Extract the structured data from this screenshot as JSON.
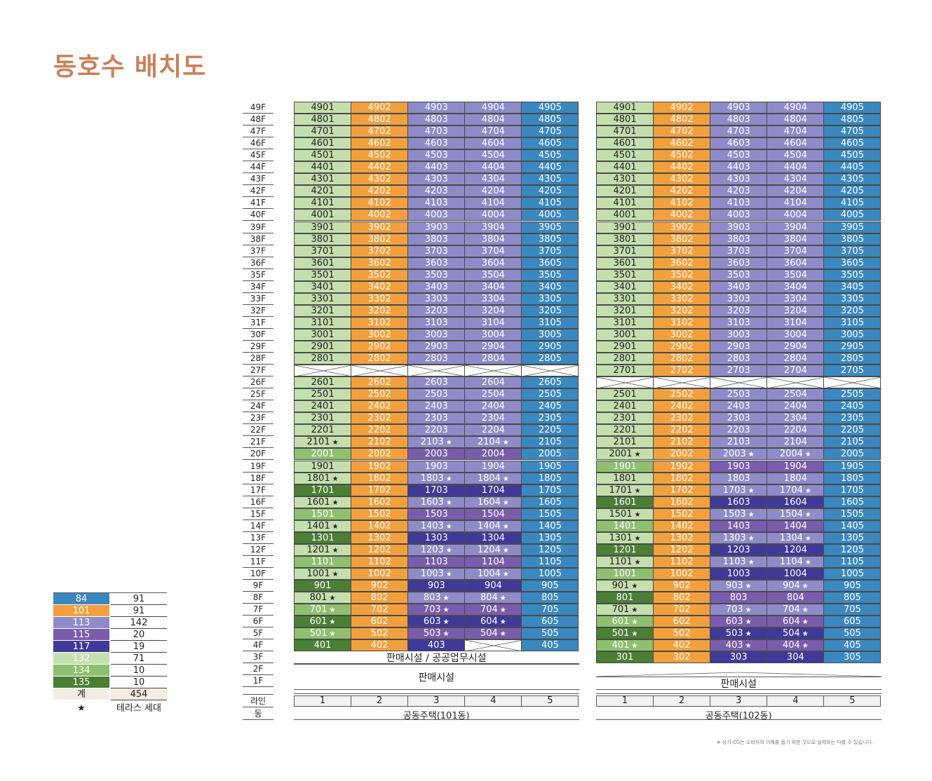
{
  "title": "동호수 배치도",
  "colors": {
    "84": "#3a88bf",
    "101": "#f2a03d",
    "113": "#8e8bc8",
    "115": "#7a5cac",
    "117": "#3f3a97",
    "132": "#c4dfad",
    "134": "#8ec06f",
    "135": "#4b7f35"
  },
  "legend": {
    "rows": [
      {
        "type": "84",
        "count": "91"
      },
      {
        "type": "101",
        "count": "91"
      },
      {
        "type": "113",
        "count": "142"
      },
      {
        "type": "115",
        "count": "20"
      },
      {
        "type": "117",
        "count": "19"
      },
      {
        "type": "132",
        "count": "71"
      },
      {
        "type": "134",
        "count": "10"
      },
      {
        "type": "135",
        "count": "10"
      }
    ],
    "total_label": "계",
    "total_value": "454",
    "star_symbol": "★",
    "star_label": "테라스 세대"
  },
  "floors": [
    "49F",
    "48F",
    "47F",
    "46F",
    "45F",
    "44F",
    "43F",
    "42F",
    "41F",
    "40F",
    "39F",
    "38F",
    "37F",
    "36F",
    "35F",
    "34F",
    "33F",
    "32F",
    "31F",
    "30F",
    "29F",
    "28F",
    "27F",
    "26F",
    "25F",
    "24F",
    "23F",
    "22F",
    "21F",
    "20F",
    "19F",
    "18F",
    "17F",
    "16F",
    "15F",
    "14F",
    "13F",
    "12F",
    "11F",
    "10F",
    "9F",
    "8F",
    "7F",
    "6F",
    "5F",
    "4F",
    "3F",
    "2F",
    "1F"
  ],
  "line_label": "라인",
  "building_label": "동",
  "lines": [
    "1",
    "2",
    "3",
    "4",
    "5"
  ],
  "buildings": [
    {
      "name": "공동주택(101동)",
      "commercial_upper": "판매시설 / 공공업무시설",
      "commercial_lower": "판매시설",
      "void_floor": "27F",
      "units": {
        "49F": [
          "4901:132",
          "4902:101",
          "4903:113",
          "4904:113",
          "4905:84"
        ],
        "48F": [
          "4801:132",
          "4802:101",
          "4803:113",
          "4804:113",
          "4805:84"
        ],
        "47F": [
          "4701:132",
          "4702:101",
          "4703:113",
          "4704:113",
          "4705:84"
        ],
        "46F": [
          "4601:132",
          "4602:101",
          "4603:113",
          "4604:113",
          "4605:84"
        ],
        "45F": [
          "4501:132",
          "4502:101",
          "4503:113",
          "4504:113",
          "4505:84"
        ],
        "44F": [
          "4401:132",
          "4402:101",
          "4403:113",
          "4404:113",
          "4405:84"
        ],
        "43F": [
          "4301:132",
          "4302:101",
          "4303:113",
          "4304:113",
          "4305:84"
        ],
        "42F": [
          "4201:132",
          "4202:101",
          "4203:113",
          "4204:113",
          "4205:84"
        ],
        "41F": [
          "4101:132",
          "4102:101",
          "4103:113",
          "4104:113",
          "4105:84"
        ],
        "40F": [
          "4001:132",
          "4002:101",
          "4003:113",
          "4004:113",
          "4005:84"
        ],
        "39F": [
          "3901:132",
          "3902:101",
          "3903:113",
          "3904:113",
          "3905:84"
        ],
        "38F": [
          "3801:132",
          "3802:101",
          "3803:113",
          "3804:113",
          "3805:84"
        ],
        "37F": [
          "3701:132",
          "3702:101",
          "3703:113",
          "3704:113",
          "3705:84"
        ],
        "36F": [
          "3601:132",
          "3602:101",
          "3603:113",
          "3604:113",
          "3605:84"
        ],
        "35F": [
          "3501:132",
          "3502:101",
          "3503:113",
          "3504:113",
          "3505:84"
        ],
        "34F": [
          "3401:132",
          "3402:101",
          "3403:113",
          "3404:113",
          "3405:84"
        ],
        "33F": [
          "3301:132",
          "3302:101",
          "3303:113",
          "3304:113",
          "3305:84"
        ],
        "32F": [
          "3201:132",
          "3202:101",
          "3203:113",
          "3204:113",
          "3205:84"
        ],
        "31F": [
          "3101:132",
          "3102:101",
          "3103:113",
          "3104:113",
          "3105:84"
        ],
        "30F": [
          "3001:132",
          "3002:101",
          "3003:113",
          "3004:113",
          "3005:84"
        ],
        "29F": [
          "2901:132",
          "2902:101",
          "2903:113",
          "2904:113",
          "2905:84"
        ],
        "28F": [
          "2801:132",
          "2802:101",
          "2803:113",
          "2804:113",
          "2805:84"
        ],
        "26F": [
          "2601:132",
          "2602:101",
          "2603:113",
          "2604:113",
          "2605:84"
        ],
        "25F": [
          "2501:132",
          "2502:101",
          "2503:113",
          "2504:113",
          "2505:84"
        ],
        "24F": [
          "2401:132",
          "2402:101",
          "2403:113",
          "2404:113",
          "2405:84"
        ],
        "23F": [
          "2301:132",
          "2302:101",
          "2303:113",
          "2304:113",
          "2305:84"
        ],
        "22F": [
          "2201:132",
          "2202:101",
          "2203:113",
          "2204:113",
          "2205:84"
        ],
        "21F": [
          "2101:132:s",
          "2102:101",
          "2103:113:s",
          "2104:113:s",
          "2105:84"
        ],
        "20F": [
          "2001:134",
          "2002:101",
          "2003:115",
          "2004:115",
          "2005:84"
        ],
        "19F": [
          "1901:132",
          "1902:101",
          "1903:113",
          "1904:113",
          "1905:84"
        ],
        "18F": [
          "1801:132:s",
          "1802:101",
          "1803:113:s",
          "1804:113:s",
          "1805:84"
        ],
        "17F": [
          "1701:135",
          "1702:101",
          "1703:117",
          "1704:117",
          "1705:84"
        ],
        "16F": [
          "1601:132:s",
          "1602:101",
          "1603:113:s",
          "1604:113:s",
          "1605:84"
        ],
        "15F": [
          "1501:134",
          "1502:101",
          "1503:115",
          "1504:115",
          "1505:84"
        ],
        "14F": [
          "1401:132:s",
          "1402:101",
          "1403:113:s",
          "1404:113:s",
          "1405:84"
        ],
        "13F": [
          "1301:135",
          "1302:101",
          "1303:117",
          "1304:117",
          "1305:84"
        ],
        "12F": [
          "1201:132:s",
          "1202:101",
          "1203:113:s",
          "1204:113:s",
          "1205:84"
        ],
        "11F": [
          "1101:134",
          "1102:101",
          "1103:115",
          "1104:115",
          "1105:84"
        ],
        "10F": [
          "1001:132:s",
          "1002:101",
          "1003:113:s",
          "1004:113:s",
          "1005:84"
        ],
        "9F": [
          "901:135",
          "902:101",
          "903:117",
          "904:117",
          "905:84"
        ],
        "8F": [
          "801:132:s",
          "802:101",
          "803:113:s",
          "804:113:s",
          "805:84"
        ],
        "7F": [
          "701:134:s",
          "702:101",
          "703:115:s",
          "704:115:s",
          "705:84"
        ],
        "6F": [
          "601:135:s",
          "602:101",
          "603:117:s",
          "604:117:s",
          "605:84"
        ],
        "5F": [
          "501:134:s",
          "502:101",
          "503:115:s",
          "504:115:s",
          "505:84"
        ],
        "4F": [
          "401:135",
          "402:101",
          "403:117",
          "X",
          "405:84"
        ]
      }
    },
    {
      "name": "공동주택(102동)",
      "commercial_lower": "판매시설",
      "void_floor": "26F",
      "units": {
        "49F": [
          "4901:132",
          "4902:101",
          "4903:113",
          "4904:113",
          "4905:84"
        ],
        "48F": [
          "4801:132",
          "4802:101",
          "4803:113",
          "4804:113",
          "4805:84"
        ],
        "47F": [
          "4701:132",
          "4702:101",
          "4703:113",
          "4704:113",
          "4705:84"
        ],
        "46F": [
          "4601:132",
          "4602:101",
          "4603:113",
          "4604:113",
          "4605:84"
        ],
        "45F": [
          "4501:132",
          "4502:101",
          "4503:113",
          "4504:113",
          "4505:84"
        ],
        "44F": [
          "4401:132",
          "4402:101",
          "4403:113",
          "4404:113",
          "4405:84"
        ],
        "43F": [
          "4301:132",
          "4302:101",
          "4303:113",
          "4304:113",
          "4305:84"
        ],
        "42F": [
          "4201:132",
          "4202:101",
          "4203:113",
          "4204:113",
          "4205:84"
        ],
        "41F": [
          "4101:132",
          "4102:101",
          "4103:113",
          "4104:113",
          "4105:84"
        ],
        "40F": [
          "4001:132",
          "4002:101",
          "4003:113",
          "4004:113",
          "4005:84"
        ],
        "39F": [
          "3901:132",
          "3902:101",
          "3903:113",
          "3904:113",
          "3905:84"
        ],
        "38F": [
          "3801:132",
          "3802:101",
          "3803:113",
          "3804:113",
          "3805:84"
        ],
        "37F": [
          "3701:132",
          "3702:101",
          "3703:113",
          "3704:113",
          "3705:84"
        ],
        "36F": [
          "3601:132",
          "3602:101",
          "3603:113",
          "3604:113",
          "3605:84"
        ],
        "35F": [
          "3501:132",
          "3502:101",
          "3503:113",
          "3504:113",
          "3505:84"
        ],
        "34F": [
          "3401:132",
          "3402:101",
          "3403:113",
          "3404:113",
          "3405:84"
        ],
        "33F": [
          "3301:132",
          "3302:101",
          "3303:113",
          "3304:113",
          "3305:84"
        ],
        "32F": [
          "3201:132",
          "3202:101",
          "3203:113",
          "3204:113",
          "3205:84"
        ],
        "31F": [
          "3101:132",
          "3102:101",
          "3103:113",
          "3104:113",
          "3105:84"
        ],
        "30F": [
          "3001:132",
          "3002:101",
          "3003:113",
          "3004:113",
          "3005:84"
        ],
        "29F": [
          "2901:132",
          "2902:101",
          "2903:113",
          "2904:113",
          "2905:84"
        ],
        "28F": [
          "2801:132",
          "2802:101",
          "2803:113",
          "2804:113",
          "2805:84"
        ],
        "27F": [
          "2701:132",
          "2702:101",
          "2703:113",
          "2704:113",
          "2705:84"
        ],
        "25F": [
          "2501:132",
          "2502:101",
          "2503:113",
          "2504:113",
          "2505:84"
        ],
        "24F": [
          "2401:132",
          "2402:101",
          "2403:113",
          "2404:113",
          "2405:84"
        ],
        "23F": [
          "2301:132",
          "2302:101",
          "2303:113",
          "2304:113",
          "2305:84"
        ],
        "22F": [
          "2201:132",
          "2202:101",
          "2203:113",
          "2204:113",
          "2205:84"
        ],
        "21F": [
          "2101:132",
          "2102:101",
          "2103:113",
          "2104:113",
          "2105:84"
        ],
        "20F": [
          "2001:132:s",
          "2002:101",
          "2003:113:s",
          "2004:113:s",
          "2005:84"
        ],
        "19F": [
          "1901:134",
          "1902:101",
          "1903:115",
          "1904:115",
          "1905:84"
        ],
        "18F": [
          "1801:132",
          "1802:101",
          "1803:113",
          "1804:113",
          "1805:84"
        ],
        "17F": [
          "1701:132:s",
          "1702:101",
          "1703:113:s",
          "1704:113:s",
          "1705:84"
        ],
        "16F": [
          "1601:135",
          "1602:101",
          "1603:117",
          "1604:117",
          "1605:84"
        ],
        "15F": [
          "1501:132:s",
          "1502:101",
          "1503:113:s",
          "1504:113:s",
          "1505:84"
        ],
        "14F": [
          "1401:134",
          "1402:101",
          "1403:115",
          "1404:115",
          "1405:84"
        ],
        "13F": [
          "1301:132:s",
          "1302:101",
          "1303:113:s",
          "1304:113:s",
          "1305:84"
        ],
        "12F": [
          "1201:135",
          "1202:101",
          "1203:117",
          "1204:117",
          "1205:84"
        ],
        "11F": [
          "1101:132:s",
          "1102:101",
          "1103:113:s",
          "1104:113:s",
          "1105:84"
        ],
        "10F": [
          "1001:134",
          "1002:101",
          "1003:117",
          "1004:117",
          "1005:84"
        ],
        "9F": [
          "901:132:s",
          "902:101",
          "903:113:s",
          "904:113:s",
          "905:84"
        ],
        "8F": [
          "801:135",
          "802:101",
          "803:115",
          "804:115",
          "805:84"
        ],
        "7F": [
          "701:132:s",
          "702:101",
          "703:113:s",
          "704:113:s",
          "705:84"
        ],
        "6F": [
          "601:134:s",
          "602:101",
          "603:115:s",
          "604:115:s",
          "605:84"
        ],
        "5F": [
          "501:135:s",
          "502:101",
          "503:117:s",
          "504:117:s",
          "505:84"
        ],
        "4F": [
          "401:134:s",
          "402:101",
          "403:115:s",
          "404:115:s",
          "405:84"
        ],
        "3F": [
          "301:135",
          "302:101",
          "303:117",
          "304:117",
          "305:84"
        ]
      }
    }
  ],
  "footnote": "※ 상기 CG는 소비자의 이해를 돕기 위한 것으로 실제와는 다를 수 있습니다."
}
